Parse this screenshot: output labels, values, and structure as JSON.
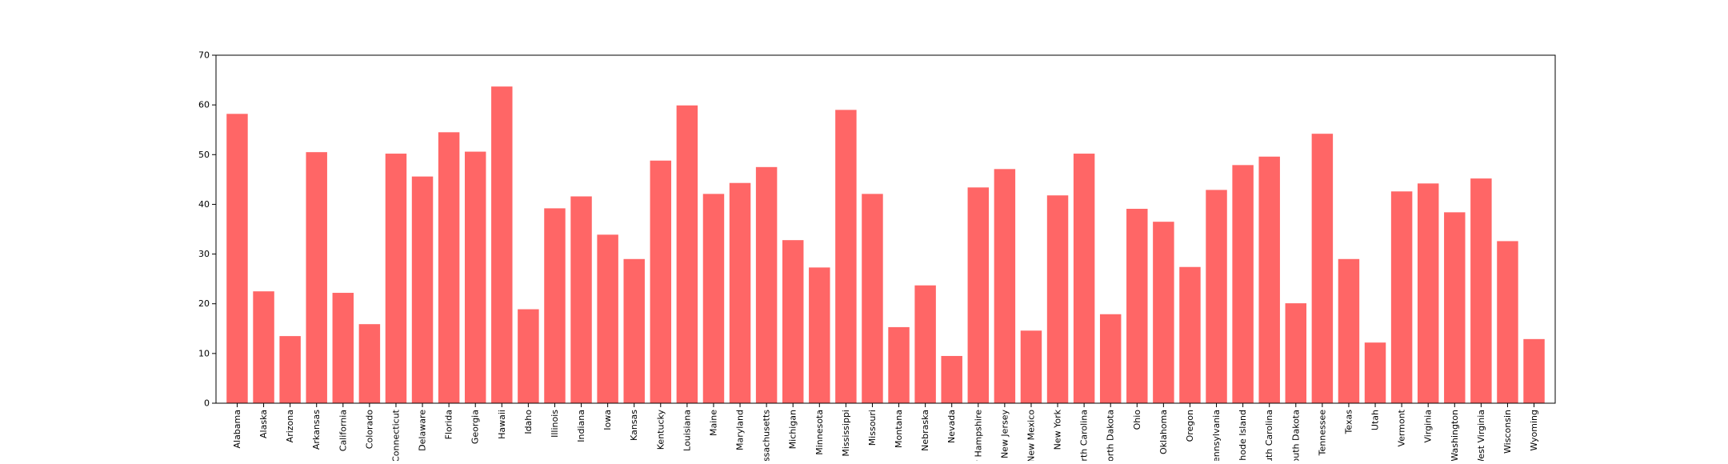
{
  "chart_data": {
    "type": "bar",
    "title": "",
    "xlabel": "",
    "ylabel": "",
    "ylim": [
      0,
      70
    ],
    "yticks": [
      0,
      10,
      20,
      30,
      40,
      50,
      60,
      70
    ],
    "bar_color": "#ff6666",
    "grid": false,
    "categories": [
      "Alabama",
      "Alaska",
      "Arizona",
      "Arkansas",
      "California",
      "Colorado",
      "Connecticut",
      "Delaware",
      "Florida",
      "Georgia",
      "Hawaii",
      "Idaho",
      "Illinois",
      "Indiana",
      "Iowa",
      "Kansas",
      "Kentucky",
      "Louisiana",
      "Maine",
      "Maryland",
      "Massachusetts",
      "Michigan",
      "Minnesota",
      "Mississippi",
      "Missouri",
      "Montana",
      "Nebraska",
      "Nevada",
      "New Hampshire",
      "New Jersey",
      "New Mexico",
      "New York",
      "North Carolina",
      "North Dakota",
      "Ohio",
      "Oklahoma",
      "Oregon",
      "Pennsylvania",
      "Rhode Island",
      "South Carolina",
      "South Dakota",
      "Tennessee",
      "Texas",
      "Utah",
      "Vermont",
      "Virginia",
      "Washington",
      "West Virginia",
      "Wisconsin",
      "Wyoming"
    ],
    "values": [
      58.2,
      22.5,
      13.5,
      50.5,
      22.2,
      15.9,
      50.2,
      45.6,
      54.5,
      50.6,
      63.7,
      18.9,
      39.2,
      41.6,
      33.9,
      29.0,
      48.8,
      59.9,
      42.1,
      44.3,
      47.5,
      32.8,
      27.3,
      59.0,
      42.1,
      15.3,
      23.7,
      9.5,
      43.4,
      47.1,
      14.6,
      41.8,
      50.2,
      17.9,
      39.1,
      36.5,
      27.4,
      42.9,
      47.9,
      49.6,
      20.1,
      54.2,
      29.0,
      12.2,
      42.6,
      44.2,
      38.4,
      45.2,
      32.6,
      12.9
    ]
  }
}
